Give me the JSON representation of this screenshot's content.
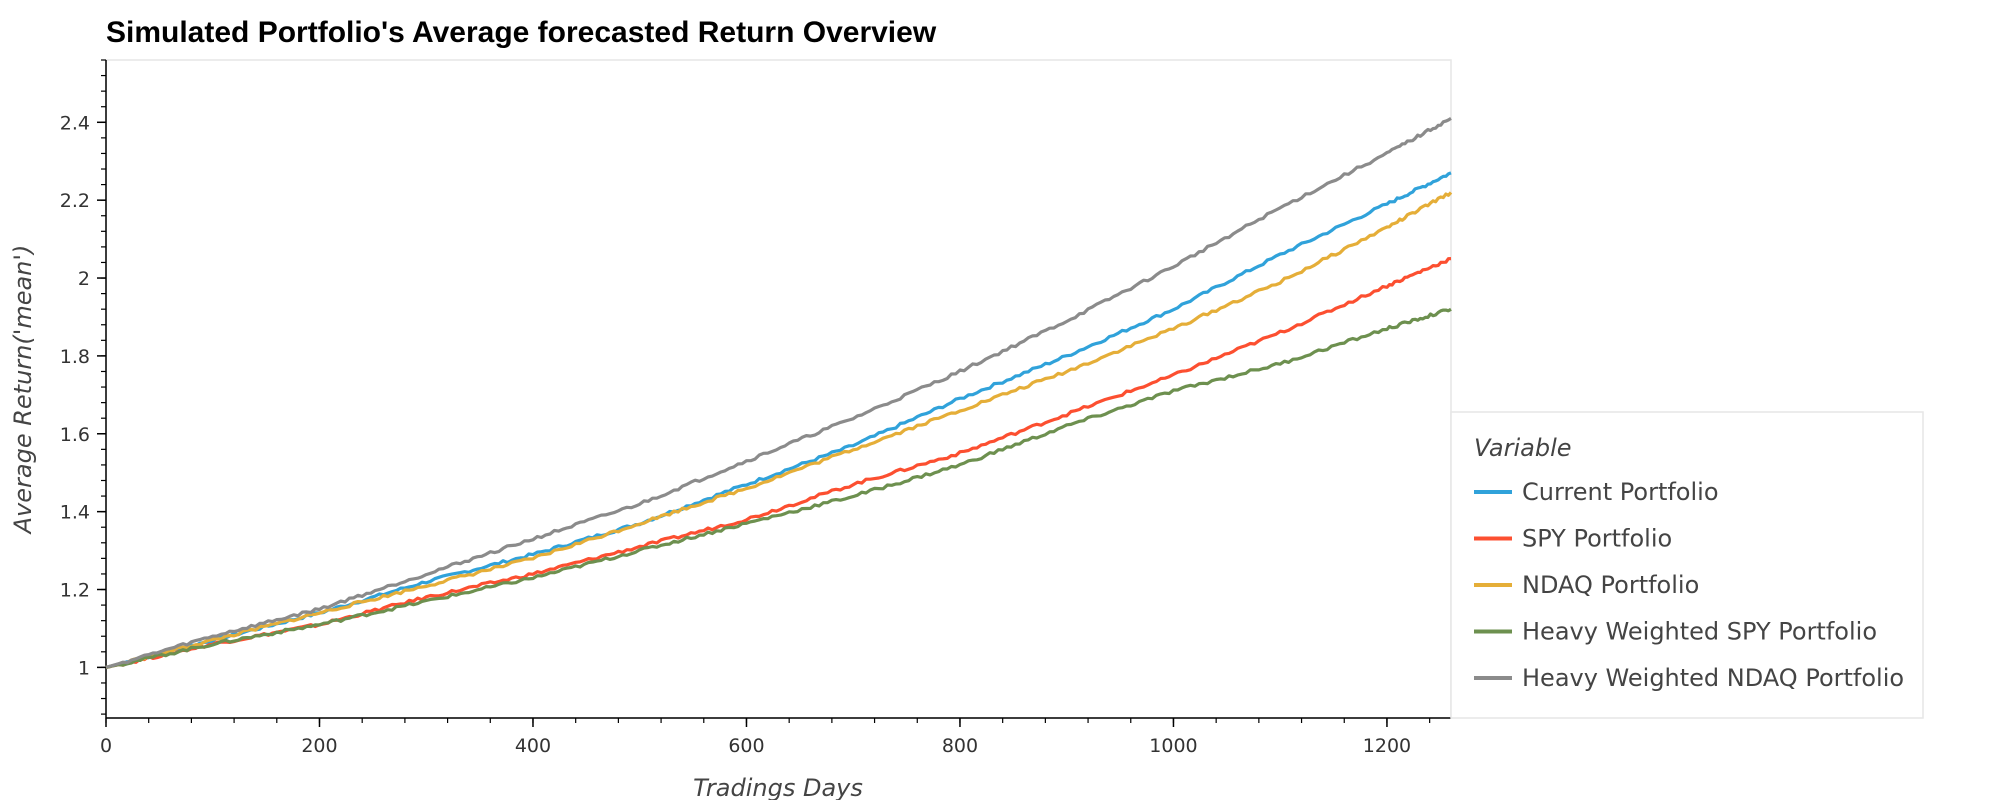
{
  "chart_data": {
    "type": "line",
    "title": "Simulated Portfolio's Average forecasted Return Overview",
    "xlabel": "Tradings Days",
    "ylabel": "Average Return('mean')",
    "xlim": [
      0,
      1260
    ],
    "ylim": [
      0.87,
      2.56
    ],
    "x_ticks": [
      0,
      200,
      400,
      600,
      800,
      1000,
      1200
    ],
    "y_ticks": [
      1,
      1.2,
      1.4,
      1.6,
      1.8,
      2,
      2.2,
      2.4
    ],
    "y_tick_labels": [
      "1",
      "1.2",
      "1.4",
      "1.6",
      "1.8",
      "2",
      "2.2",
      "2.4"
    ],
    "x_tick_labels": [
      "0",
      "200",
      "400",
      "600",
      "800",
      "1000",
      "1200"
    ],
    "grid": false,
    "legend": {
      "title": "Variable",
      "placement": "right"
    },
    "x": [
      0,
      100,
      200,
      300,
      400,
      500,
      600,
      700,
      800,
      900,
      1000,
      1100,
      1200,
      1260
    ],
    "series": [
      {
        "name": "Current Portfolio",
        "color": "#30a2da",
        "values": [
          1.0,
          1.07,
          1.14,
          1.22,
          1.29,
          1.37,
          1.47,
          1.57,
          1.69,
          1.8,
          1.92,
          2.06,
          2.19,
          2.27
        ]
      },
      {
        "name": "SPY Portfolio",
        "color": "#fc4f30",
        "values": [
          1.0,
          1.06,
          1.11,
          1.18,
          1.24,
          1.31,
          1.38,
          1.47,
          1.55,
          1.65,
          1.75,
          1.86,
          1.98,
          2.05
        ]
      },
      {
        "name": "NDAQ Portfolio",
        "color": "#e5ae38",
        "values": [
          1.0,
          1.07,
          1.14,
          1.21,
          1.28,
          1.37,
          1.46,
          1.56,
          1.66,
          1.76,
          1.87,
          1.99,
          2.13,
          2.22
        ]
      },
      {
        "name": "Heavy Weighted SPY Portfolio",
        "color": "#6d904f",
        "values": [
          1.0,
          1.06,
          1.11,
          1.17,
          1.23,
          1.3,
          1.37,
          1.44,
          1.52,
          1.62,
          1.71,
          1.78,
          1.87,
          1.92
        ]
      },
      {
        "name": "Heavy Weighted NDAQ Portfolio",
        "color": "#8b8b8b",
        "values": [
          1.0,
          1.08,
          1.15,
          1.24,
          1.33,
          1.42,
          1.53,
          1.64,
          1.76,
          1.89,
          2.03,
          2.18,
          2.32,
          2.41
        ]
      }
    ]
  }
}
